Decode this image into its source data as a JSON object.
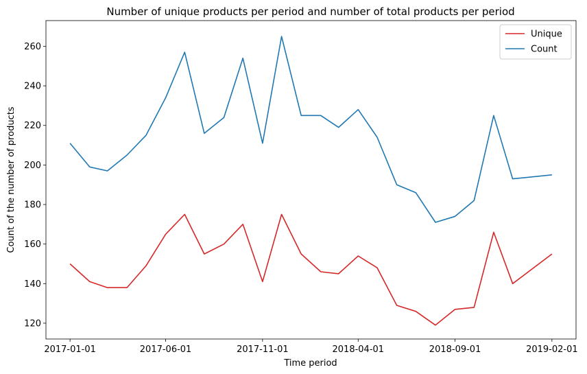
{
  "chart_data": {
    "type": "line",
    "title": "Number of unique products per period and number of total products per period",
    "xlabel": "Time period",
    "ylabel": "Count of the number of products",
    "x": [
      "2017-01-01",
      "2017-02-01",
      "2017-03-01",
      "2017-04-01",
      "2017-05-01",
      "2017-06-01",
      "2017-07-01",
      "2017-08-01",
      "2017-09-01",
      "2017-10-01",
      "2017-11-01",
      "2017-12-01",
      "2018-01-01",
      "2018-02-01",
      "2018-03-01",
      "2018-04-01",
      "2018-05-01",
      "2018-06-01",
      "2018-07-01",
      "2018-08-01",
      "2018-09-01",
      "2018-10-01",
      "2018-11-01",
      "2018-12-01",
      "2019-02-01"
    ],
    "xticks": [
      "2017-01-01",
      "2017-06-01",
      "2017-11-01",
      "2018-04-01",
      "2018-09-01",
      "2019-02-01"
    ],
    "yticks": [
      120,
      140,
      160,
      180,
      200,
      220,
      240,
      260
    ],
    "ylim": [
      112,
      273
    ],
    "grid": false,
    "legend_position": "top-right",
    "series": [
      {
        "name": "Unique",
        "color": "#d62728",
        "values": [
          150,
          141,
          138,
          138,
          149,
          165,
          175,
          155,
          160,
          170,
          141,
          175,
          155,
          146,
          145,
          154,
          148,
          129,
          126,
          119,
          127,
          128,
          166,
          140,
          155
        ]
      },
      {
        "name": "Count",
        "color": "#1f77b4",
        "values": [
          211,
          199,
          197,
          205,
          215,
          234,
          257,
          216,
          224,
          254,
          211,
          265,
          225,
          225,
          219,
          228,
          214,
          190,
          186,
          171,
          174,
          182,
          225,
          193,
          195
        ]
      }
    ]
  }
}
